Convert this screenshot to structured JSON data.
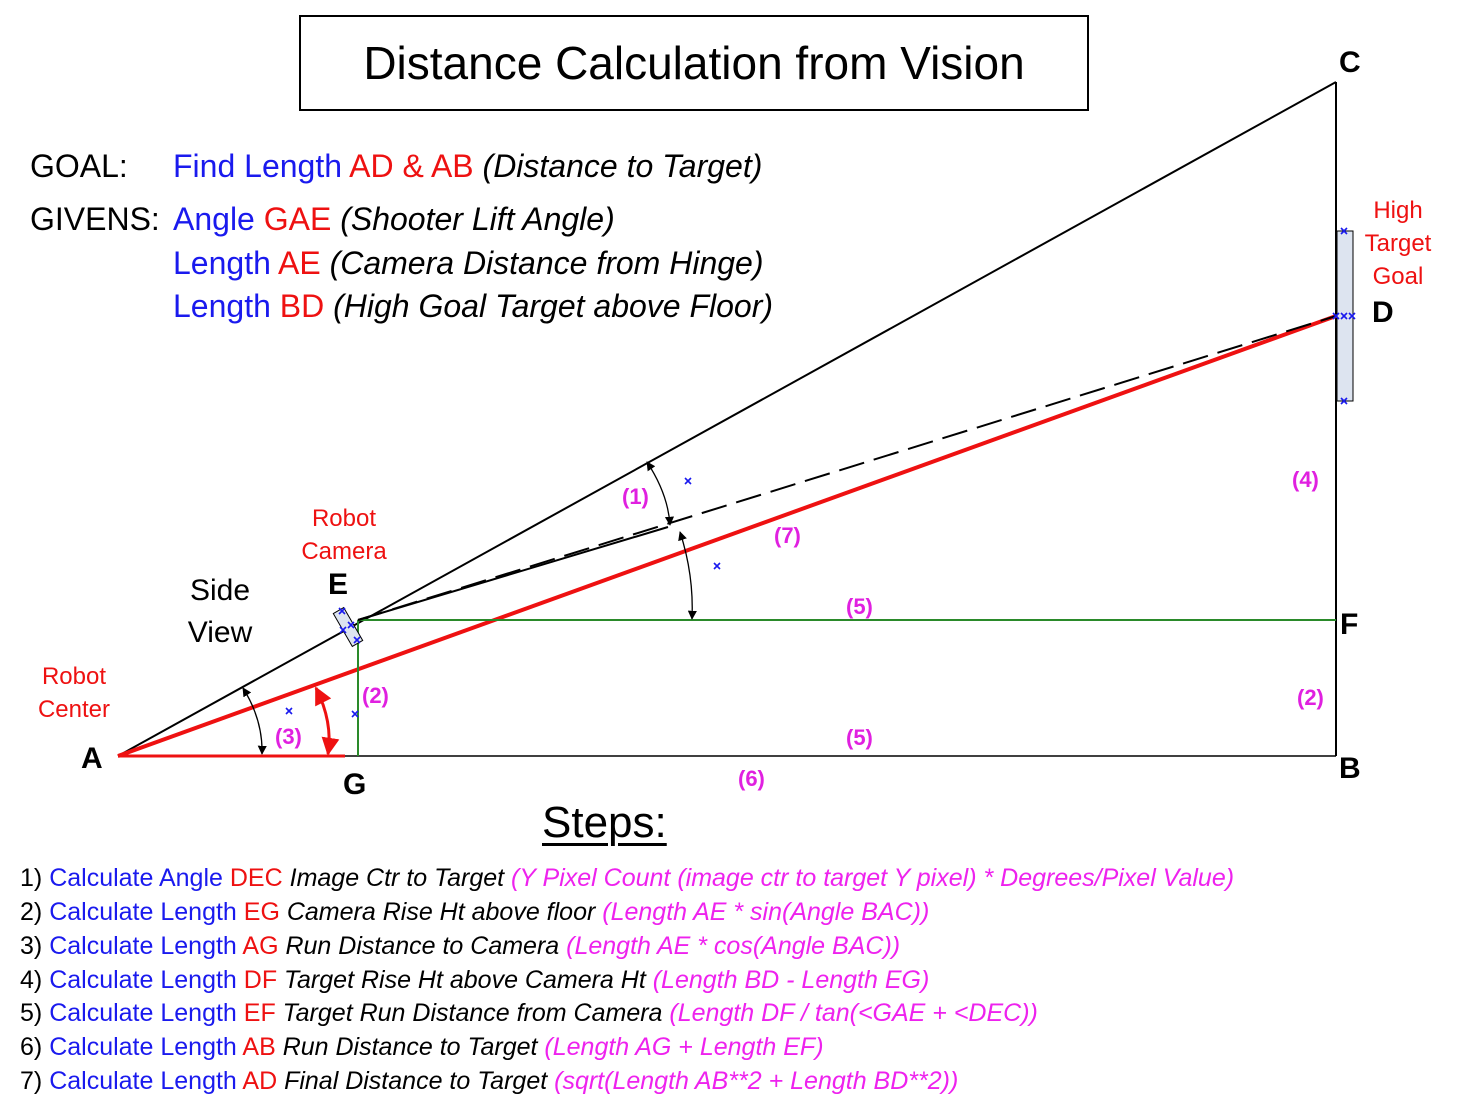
{
  "title": "Distance Calculation from Vision",
  "goal": {
    "label": "GOAL:",
    "text1": "Find Length ",
    "highlight": "AD & AB",
    "note": "(Distance to Target)"
  },
  "givens": {
    "label": "GIVENS:",
    "items": [
      {
        "text": "Angle ",
        "highlight": "GAE",
        "note": "(Shooter Lift Angle)"
      },
      {
        "text": "Length ",
        "highlight": "AE",
        "note": "(Camera Distance from Hinge)"
      },
      {
        "text": "Length ",
        "highlight": "BD",
        "note": "(High Goal Target above Floor)"
      }
    ]
  },
  "points": {
    "A": "A",
    "B": "B",
    "C": "C",
    "D": "D",
    "E": "E",
    "F": "F",
    "G": "G"
  },
  "labels": {
    "robot_center_1": "Robot",
    "robot_center_2": "Center",
    "robot_camera_1": "Robot",
    "robot_camera_2": "Camera",
    "side_view_1": "Side",
    "side_view_2": "View",
    "high_goal_1": "High",
    "high_goal_2": "Target",
    "high_goal_3": "Goal"
  },
  "markers": {
    "m1": "(1)",
    "m2a": "(2)",
    "m2b": "(2)",
    "m3": "(3)",
    "m4": "(4)",
    "m5a": "(5)",
    "m5b": "(5)",
    "m6": "(6)",
    "m7": "(7)"
  },
  "steps_heading": "Steps:",
  "steps": [
    {
      "num": "1) ",
      "action": "Calculate Angle ",
      "var": "DEC",
      "desc": " Image Ctr to Target ",
      "formula": "(Y Pixel Count (image ctr to target Y pixel) * Degrees/Pixel Value)"
    },
    {
      "num": "2) ",
      "action": "Calculate Length ",
      "var": "EG",
      "desc": " Camera Rise Ht above floor ",
      "formula": "(Length AE * sin(Angle BAC))"
    },
    {
      "num": "3) ",
      "action": "Calculate Length ",
      "var": "AG",
      "desc": " Run Distance to Camera ",
      "formula": "(Length AE * cos(Angle BAC))"
    },
    {
      "num": "4) ",
      "action": "Calculate Length ",
      "var": "DF",
      "desc": " Target Rise Ht above Camera Ht ",
      "formula": "(Length BD - Length EG)"
    },
    {
      "num": "5) ",
      "action": "Calculate Length ",
      "var": "EF",
      "desc": " Target Run Distance from Camera ",
      "formula": "(Length DF / tan(<GAE + <DEC))"
    },
    {
      "num": "6) ",
      "action": "Calculate Length ",
      "var": "AB",
      "desc": " Run Distance to Target ",
      "formula": "(Length AG + Length EF)"
    },
    {
      "num": "7) ",
      "action": "Calculate Length ",
      "var": "AD",
      "desc": " Final Distance to Target ",
      "formula": "(sqrt(Length AB**2 + Length BD**2))"
    }
  ],
  "colors": {
    "black": "#000000",
    "blue": "#1a1aee",
    "red": "#ee1111",
    "magenta": "#ee22ee",
    "green": "#2a8a2a",
    "target_fill": "#dde4f0"
  }
}
